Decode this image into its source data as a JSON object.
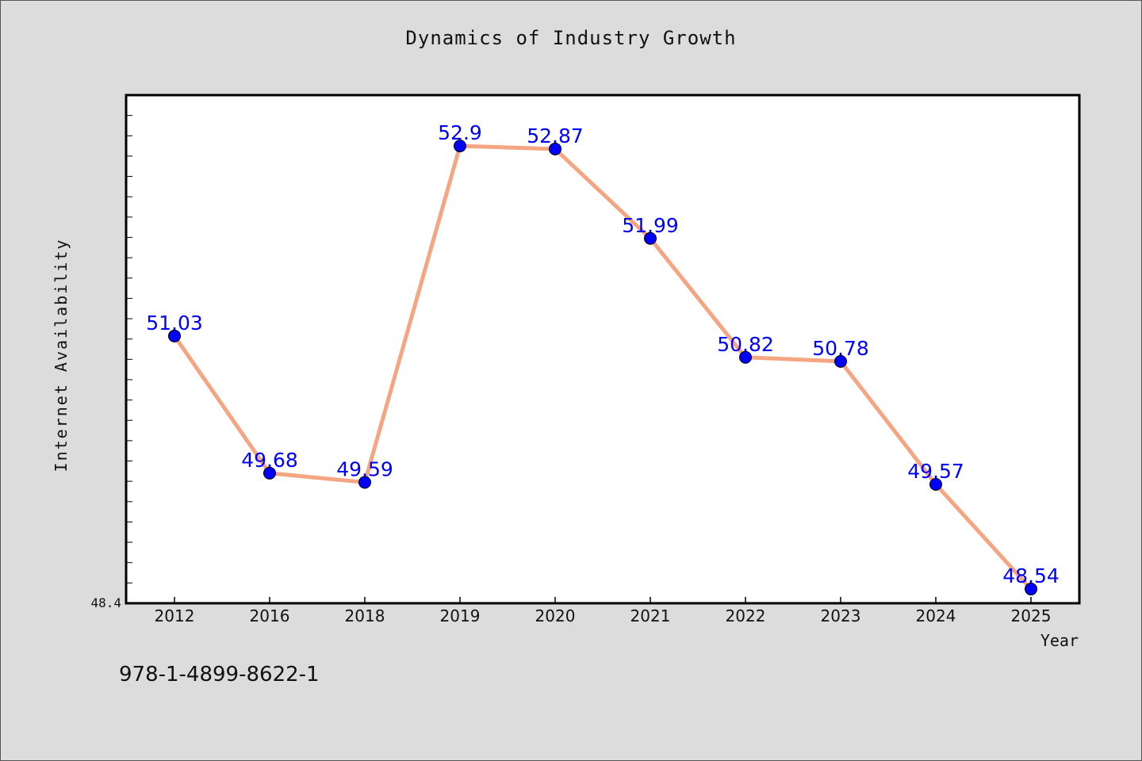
{
  "chart_data": {
    "type": "line",
    "title": "Dynamics of Industry Growth",
    "xlabel": "Year",
    "ylabel": "Internet Availability",
    "categories": [
      "2012",
      "2016",
      "2018",
      "2019",
      "2020",
      "2021",
      "2022",
      "2023",
      "2024",
      "2025"
    ],
    "series": [
      {
        "values": [
          51.03,
          49.68,
          49.59,
          52.9,
          52.87,
          51.99,
          50.82,
          50.78,
          49.57,
          48.54
        ]
      }
    ],
    "data_labels": [
      "51.03",
      "49.68",
      "49.59",
      "52.9",
      "52.87",
      "51.99",
      "50.82",
      "50.78",
      "49.57",
      "48.54"
    ],
    "ylim": [
      48.4,
      53.4
    ],
    "y_tick_label": "48.4",
    "grid": false,
    "colors": {
      "line": "#f4a582",
      "marker": "#0000ff",
      "label": "#0000ff"
    }
  },
  "footer": {
    "isbn": "978-1-4899-8622-1"
  }
}
